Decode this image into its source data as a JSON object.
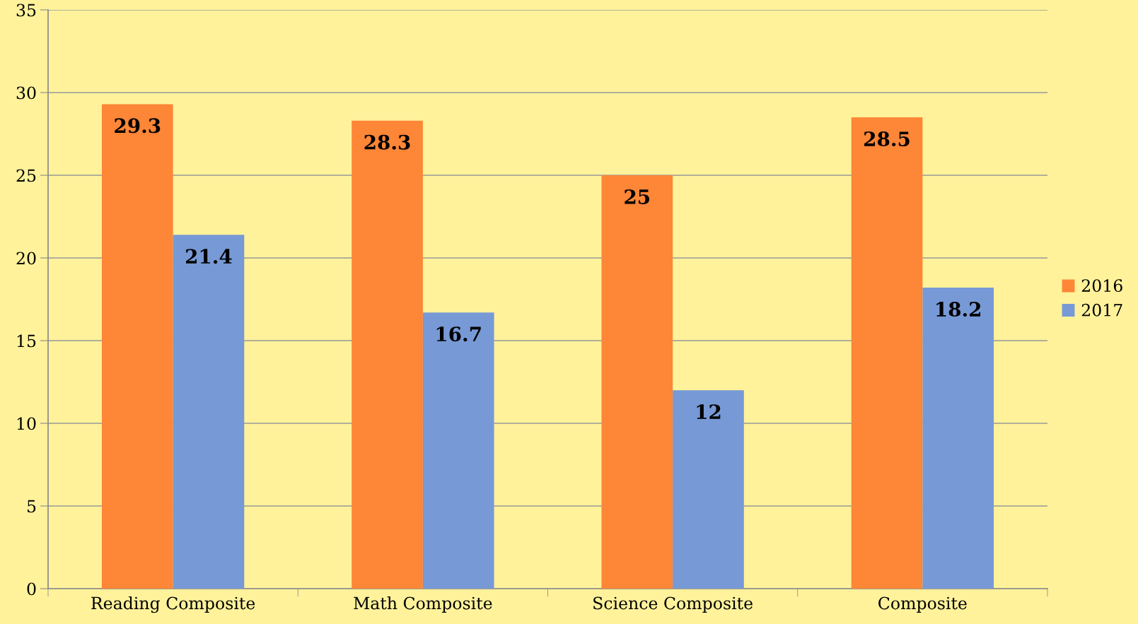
{
  "chart_data": {
    "type": "bar",
    "categories": [
      "Reading Composite",
      "Math Composite",
      "Science Composite",
      "Composite"
    ],
    "series": [
      {
        "name": "2016",
        "color": "#fd8637",
        "values": [
          29.3,
          28.3,
          25,
          28.5
        ]
      },
      {
        "name": "2017",
        "color": "#7799d6",
        "values": [
          21.4,
          16.7,
          12,
          18.2
        ]
      }
    ],
    "ylim": [
      0,
      35
    ],
    "yticks": [
      0,
      5,
      10,
      15,
      20,
      25,
      30,
      35
    ],
    "grid": "y",
    "legend": "right",
    "data_labels": true
  }
}
